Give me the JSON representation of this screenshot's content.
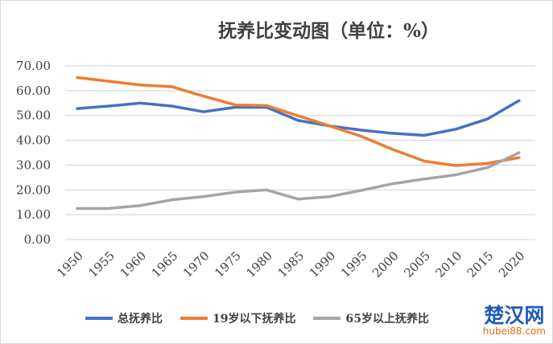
{
  "chart_data": {
    "type": "line",
    "title": "抚养比变动图（单位：%）",
    "categories": [
      "1950",
      "1955",
      "1960",
      "1965",
      "1970",
      "1975",
      "1980",
      "1985",
      "1990",
      "1995",
      "2000",
      "2005",
      "2010",
      "2015",
      "2020"
    ],
    "ylim": [
      0,
      70
    ],
    "yticks": [
      "0.00",
      "10.00",
      "20.00",
      "30.00",
      "40.00",
      "50.00",
      "60.00",
      "70.00"
    ],
    "grid": true,
    "legend_position": "bottom",
    "series": [
      {
        "name": "总抚养比",
        "color": "#4472c4",
        "values": [
          52.8,
          53.8,
          55.0,
          53.8,
          51.5,
          53.3,
          53.3,
          48.0,
          45.8,
          44.1,
          42.8,
          42.0,
          44.5,
          48.6,
          56.0
        ]
      },
      {
        "name": "19岁以下抚养比",
        "color": "#ed7d31",
        "values": [
          65.3,
          63.8,
          62.3,
          61.6,
          57.8,
          54.3,
          54.0,
          49.9,
          45.8,
          41.6,
          36.3,
          31.6,
          29.8,
          30.7,
          33.0
        ]
      },
      {
        "name": "65岁以上抚养比",
        "color": "#a5a5a5",
        "values": [
          12.5,
          12.5,
          13.7,
          16.0,
          17.3,
          19.1,
          20.0,
          16.3,
          17.3,
          19.8,
          22.5,
          24.4,
          26.1,
          29.0,
          35.0
        ]
      }
    ]
  },
  "watermark": {
    "name": "楚汉网",
    "url_text": "hubei88.com"
  }
}
